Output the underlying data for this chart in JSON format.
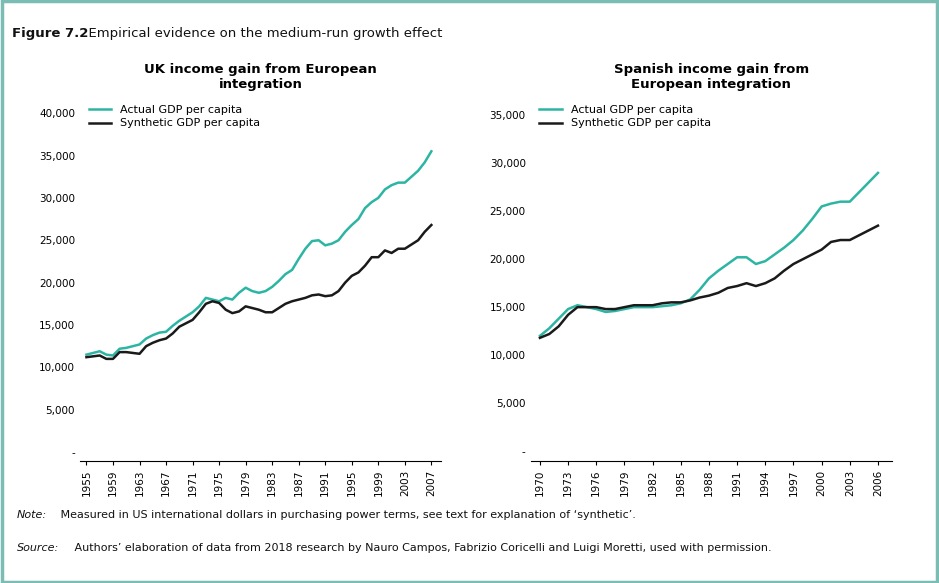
{
  "figure_title_bold": "Figure 7.2",
  "figure_title_rest": "  Empirical evidence on the medium-run growth effect",
  "note_italic": "Note:",
  "note_rest": " Measured in US international dollars in purchasing power terms, see text for explanation of ‘synthetic’.",
  "source_italic": "Source:",
  "source_rest": " Authors’ elaboration of data from 2018 research by Nauro Campos, Fabrizio Coricelli and Luigi Moretti, used with permission.",
  "panel1": {
    "title": "UK income gain from European\nintegration",
    "years": [
      1955,
      1956,
      1957,
      1958,
      1959,
      1960,
      1961,
      1962,
      1963,
      1964,
      1965,
      1966,
      1967,
      1968,
      1969,
      1970,
      1971,
      1972,
      1973,
      1974,
      1975,
      1976,
      1977,
      1978,
      1979,
      1980,
      1981,
      1982,
      1983,
      1984,
      1985,
      1986,
      1987,
      1988,
      1989,
      1990,
      1991,
      1992,
      1993,
      1994,
      1995,
      1996,
      1997,
      1998,
      1999,
      2000,
      2001,
      2002,
      2003,
      2004,
      2005,
      2006,
      2007
    ],
    "actual": [
      11500,
      11700,
      11900,
      11500,
      11400,
      12200,
      12300,
      12500,
      12700,
      13400,
      13800,
      14100,
      14200,
      14900,
      15500,
      16000,
      16500,
      17200,
      18200,
      18000,
      17800,
      18200,
      18000,
      18800,
      19400,
      19000,
      18800,
      19000,
      19500,
      20200,
      21000,
      21500,
      22800,
      24000,
      24900,
      25000,
      24400,
      24600,
      25000,
      26000,
      26800,
      27500,
      28800,
      29500,
      30000,
      31000,
      31500,
      31800,
      31800,
      32500,
      33200,
      34200,
      35500
    ],
    "synthetic": [
      11200,
      11300,
      11400,
      11000,
      11000,
      11800,
      11800,
      11700,
      11600,
      12500,
      12900,
      13200,
      13400,
      14000,
      14800,
      15200,
      15600,
      16500,
      17500,
      17800,
      17600,
      16800,
      16400,
      16600,
      17200,
      17000,
      16800,
      16500,
      16500,
      17000,
      17500,
      17800,
      18000,
      18200,
      18500,
      18600,
      18400,
      18500,
      19000,
      20000,
      20800,
      21200,
      22000,
      23000,
      23000,
      23800,
      23500,
      24000,
      24000,
      24500,
      25000,
      26000,
      26800
    ],
    "xticks": [
      1955,
      1959,
      1963,
      1967,
      1971,
      1975,
      1979,
      1983,
      1987,
      1991,
      1995,
      1999,
      2003,
      2007
    ],
    "yticks": [
      0,
      5000,
      10000,
      15000,
      20000,
      25000,
      30000,
      35000,
      40000
    ],
    "ytick_labels": [
      "-",
      "5,000",
      "10,000",
      "15,000",
      "20,000",
      "25,000",
      "30,000",
      "35,000",
      "40,000"
    ],
    "ylim": [
      -1000,
      42000
    ],
    "xlim": [
      1954,
      2008.5
    ]
  },
  "panel2": {
    "title": "Spanish income gain from\nEuropean integration",
    "years": [
      1970,
      1971,
      1972,
      1973,
      1974,
      1975,
      1976,
      1977,
      1978,
      1979,
      1980,
      1981,
      1982,
      1983,
      1984,
      1985,
      1986,
      1987,
      1988,
      1989,
      1990,
      1991,
      1992,
      1993,
      1994,
      1995,
      1996,
      1997,
      1998,
      1999,
      2000,
      2001,
      2002,
      2003,
      2004,
      2005,
      2006
    ],
    "actual": [
      12000,
      12800,
      13800,
      14800,
      15200,
      15000,
      14800,
      14500,
      14600,
      14800,
      15000,
      15000,
      15000,
      15100,
      15200,
      15400,
      15800,
      16800,
      18000,
      18800,
      19500,
      20200,
      20200,
      19500,
      19800,
      20500,
      21200,
      22000,
      23000,
      24200,
      25500,
      25800,
      26000,
      26000,
      27000,
      28000,
      29000
    ],
    "synthetic": [
      11800,
      12200,
      13000,
      14200,
      15000,
      15000,
      15000,
      14800,
      14800,
      15000,
      15200,
      15200,
      15200,
      15400,
      15500,
      15500,
      15700,
      16000,
      16200,
      16500,
      17000,
      17200,
      17500,
      17200,
      17500,
      18000,
      18800,
      19500,
      20000,
      20500,
      21000,
      21800,
      22000,
      22000,
      22500,
      23000,
      23500
    ],
    "xticks": [
      1970,
      1973,
      1976,
      1979,
      1982,
      1985,
      1988,
      1991,
      1994,
      1997,
      2000,
      2003,
      2006
    ],
    "yticks": [
      0,
      5000,
      10000,
      15000,
      20000,
      25000,
      30000,
      35000
    ],
    "ytick_labels": [
      "-",
      "5,000",
      "10,000",
      "15,000",
      "20,000",
      "25,000",
      "30,000",
      "35,000"
    ],
    "ylim": [
      -1000,
      37000
    ],
    "xlim": [
      1969,
      2007.5
    ]
  },
  "actual_color": "#2db5a3",
  "synthetic_color": "#1a1a1a",
  "line_width": 1.8,
  "bg_color": "#ffffff",
  "header_bg": "#aad4cc",
  "border_color": "#7bbdb5"
}
